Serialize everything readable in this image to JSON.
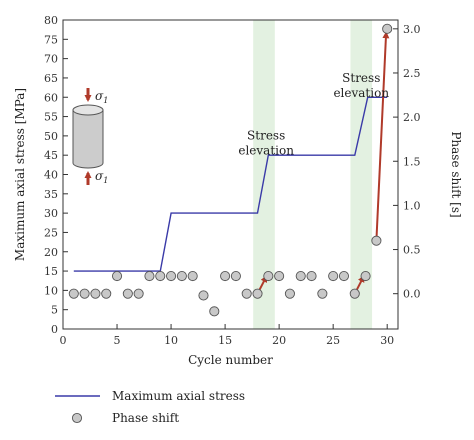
{
  "chart_data": {
    "type": "line",
    "xlabel": "Cycle number",
    "ylabel": "Maximum axial stress [MPa]",
    "y2label": "Phase shift [s]",
    "xlim": [
      0,
      31
    ],
    "ylim": [
      0,
      80
    ],
    "y2lim": [
      -0.4,
      3.1
    ],
    "x_ticks": [
      0,
      5,
      10,
      15,
      20,
      25,
      30
    ],
    "y_ticks": [
      0,
      5,
      10,
      15,
      20,
      25,
      30,
      35,
      40,
      45,
      50,
      55,
      60,
      65,
      70,
      75,
      80
    ],
    "y2_ticks": [
      0.0,
      0.5,
      1.0,
      1.5,
      2.0,
      2.5,
      3.0
    ],
    "y2_tick_labels": [
      "0.0",
      "0.5",
      "1.0",
      "1.5",
      "2.0",
      "2.5",
      "3.0"
    ],
    "shaded_regions": [
      [
        17.6,
        19.6
      ],
      [
        26.6,
        28.6
      ]
    ],
    "series": [
      {
        "name": "Maximum axial stress",
        "kind": "line",
        "color": "#3a3aa8",
        "x": [
          1,
          9,
          10,
          18,
          19,
          27,
          28.2,
          30
        ],
        "y": [
          15,
          15,
          30,
          30,
          45,
          45,
          60,
          60
        ]
      },
      {
        "name": "Phase shift",
        "kind": "scatter",
        "axis": "right",
        "color": "#c8c8c8",
        "x": [
          1,
          2,
          3,
          4,
          5,
          6,
          7,
          8,
          9,
          10,
          11,
          12,
          13,
          14,
          15,
          16,
          17,
          18,
          19,
          20,
          21,
          22,
          23,
          24,
          25,
          26,
          27,
          28,
          29,
          30
        ],
        "y": [
          0.0,
          0.0,
          0.0,
          0.0,
          0.2,
          0.0,
          0.0,
          0.2,
          0.2,
          0.2,
          0.2,
          0.2,
          -0.02,
          -0.2,
          0.2,
          0.2,
          0.0,
          0.0,
          0.2,
          0.2,
          0.0,
          0.2,
          0.2,
          0.0,
          0.2,
          0.2,
          0.0,
          0.2,
          0.6,
          3.0
        ]
      }
    ],
    "arrows": [
      {
        "from": [
          18,
          0.0
        ],
        "to": [
          18.8,
          0.19
        ],
        "color": "#b03a2a"
      },
      {
        "from": [
          27,
          0.0
        ],
        "to": [
          27.8,
          0.19
        ],
        "color": "#b03a2a"
      },
      {
        "from": [
          29,
          0.6
        ],
        "to": [
          29.9,
          2.95
        ],
        "color": "#b03a2a"
      }
    ],
    "annotations": [
      {
        "lines": [
          "Stress",
          "elevation"
        ],
        "x": 18.8,
        "y": 49
      },
      {
        "lines": [
          "Stress",
          "elevation"
        ],
        "x": 27.6,
        "y": 64
      }
    ],
    "inset": {
      "sigma_label": "σ",
      "sigma_subscript": "1",
      "arrow_color": "#b03a2a",
      "cylinder_color": "#cccccc"
    },
    "legend": {
      "position": "bottom-left",
      "entries": [
        "Maximum axial stress",
        "Phase shift"
      ]
    }
  }
}
